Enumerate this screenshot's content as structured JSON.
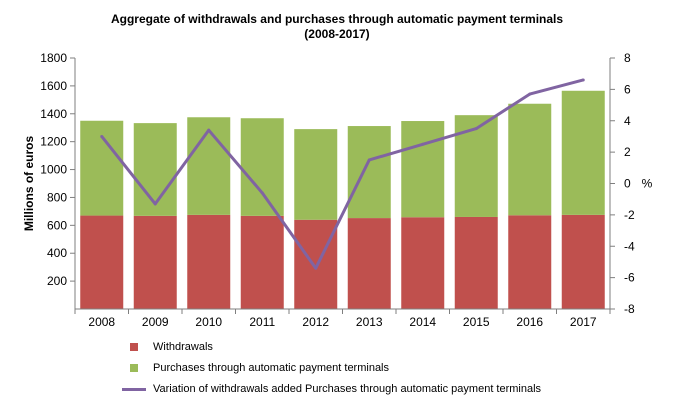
{
  "chart_data": {
    "type": "bar",
    "stacked": true,
    "title": [
      "Aggregate of withdrawals and purchases through automatic payment terminals",
      "(2008-2017)"
    ],
    "ylabel": "Millions of euros",
    "y2label": "%",
    "ylim": [
      0,
      1800
    ],
    "yticks": [
      200,
      400,
      600,
      800,
      1000,
      1200,
      1400,
      1600,
      1800
    ],
    "y2lim": [
      -8,
      8
    ],
    "y2ticks": [
      -8,
      -6,
      -4,
      -2,
      0,
      2,
      4,
      6,
      8
    ],
    "grid": false,
    "legend_position": "bottom",
    "categories": [
      "2008",
      "2009",
      "2010",
      "2011",
      "2012",
      "2013",
      "2014",
      "2015",
      "2016",
      "2017"
    ],
    "series": [
      {
        "name": "Withdrawals",
        "kind": "bar",
        "axis": "left",
        "color": "#c0504d",
        "values": [
          670,
          668,
          675,
          668,
          640,
          652,
          658,
          660,
          672,
          675
        ]
      },
      {
        "name": "Purchases through automatic payment terminals",
        "kind": "bar",
        "axis": "left",
        "color": "#9bbb59",
        "values": [
          680,
          665,
          700,
          700,
          650,
          660,
          690,
          730,
          800,
          890
        ]
      },
      {
        "name": "Variation of withdrawals added Purchases through automatic payment terminals",
        "kind": "line",
        "axis": "right",
        "color": "#8064a2",
        "values": [
          3.0,
          -1.3,
          3.4,
          -0.6,
          -5.4,
          1.5,
          2.5,
          3.5,
          5.7,
          6.6
        ]
      }
    ]
  }
}
